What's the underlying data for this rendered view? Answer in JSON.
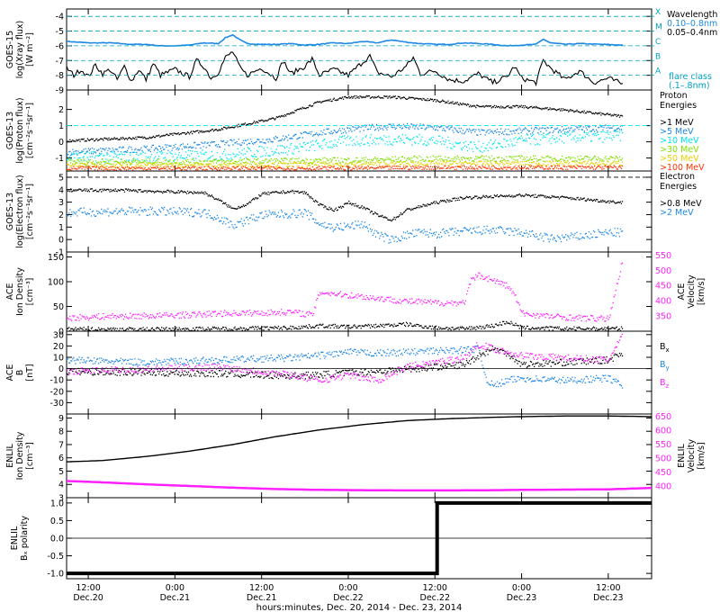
{
  "x_axis": {
    "title": "hours:minutes, Dec. 20, 2014 - Dec. 23, 2014",
    "start_hours": 9,
    "end_hours": 90,
    "ticks": [
      {
        "t": 12,
        "time": "12:00",
        "date": "Dec.20"
      },
      {
        "t": 24,
        "time": "0:00",
        "date": "Dec.21"
      },
      {
        "t": 36,
        "time": "12:00",
        "date": "Dec.21"
      },
      {
        "t": 48,
        "time": "0:00",
        "date": "Dec.22"
      },
      {
        "t": 60,
        "time": "12:00",
        "date": "Dec.22"
      },
      {
        "t": 72,
        "time": "0:00",
        "date": "Dec.23"
      },
      {
        "t": 84,
        "time": "12:00",
        "date": "Dec.23"
      }
    ]
  },
  "colors": {
    "black": "#000000",
    "blue": "#1e88e5",
    "cyan": "#00e5ee",
    "green": "#7fe000",
    "yellow": "#e8d000",
    "orange": "#ff8c00",
    "red": "#ff3300",
    "magenta": "#ff20ff",
    "teal_label": "#00a0c0"
  },
  "chart_data": [
    {
      "id": "xray",
      "type": "line",
      "ylabel_lines": [
        "GOES-15",
        "log(Xray flux)",
        "[W m⁻²]"
      ],
      "ylim": [
        -9,
        -3.5
      ],
      "yticks": [
        -9,
        -8,
        -7,
        -6,
        -5,
        -4
      ],
      "flare_classes": [
        {
          "letter": "A",
          "level": -8
        },
        {
          "letter": "B",
          "level": -7
        },
        {
          "letter": "C",
          "level": -6
        },
        {
          "letter": "M",
          "level": -5
        },
        {
          "letter": "X",
          "level": -4
        }
      ],
      "legend": {
        "title": "Wavelength",
        "entries": [
          {
            "label": "0.10–0.8nm",
            "color": "#1e88e5"
          },
          {
            "label": "0.05–0.4nm",
            "color": "#000000"
          }
        ],
        "note_lines": [
          "flare class",
          "(.1–.8nm)"
        ]
      },
      "series": [
        {
          "name": "0.10–0.8nm",
          "color": "#1e88e5",
          "t": [
            9,
            12,
            15,
            18,
            20,
            22,
            24,
            26,
            28,
            30,
            31,
            32,
            33,
            34,
            36,
            38,
            40,
            42,
            44,
            46,
            48,
            50,
            52,
            54,
            56,
            58,
            60,
            62,
            64,
            66,
            68,
            70,
            72,
            74,
            75,
            76,
            78,
            80,
            83,
            86
          ],
          "values": [
            -5.7,
            -5.8,
            -5.8,
            -5.9,
            -5.9,
            -6.0,
            -6.0,
            -5.95,
            -5.8,
            -5.85,
            -5.45,
            -5.25,
            -5.6,
            -5.85,
            -5.9,
            -5.9,
            -5.85,
            -5.95,
            -5.9,
            -5.8,
            -5.85,
            -5.7,
            -5.8,
            -5.6,
            -5.75,
            -5.85,
            -5.9,
            -5.9,
            -5.8,
            -5.85,
            -5.9,
            -6.0,
            -5.95,
            -5.9,
            -5.55,
            -5.8,
            -5.9,
            -5.85,
            -5.9,
            -5.95
          ]
        },
        {
          "name": "0.05–0.4nm",
          "color": "#000000",
          "t": [
            9,
            10,
            11,
            12,
            13,
            14,
            15,
            16,
            17,
            18,
            19,
            20,
            21,
            22,
            24,
            26,
            27,
            28,
            29,
            30,
            31,
            32,
            33,
            34,
            36,
            38,
            39,
            40,
            42,
            43,
            44,
            46,
            48,
            50,
            51,
            52,
            54,
            56,
            57,
            58,
            60,
            62,
            64,
            66,
            68,
            70,
            71,
            72,
            74,
            75,
            76,
            78,
            80,
            82,
            84,
            86
          ],
          "values": [
            -7.5,
            -8.0,
            -7.6,
            -8.1,
            -7.3,
            -7.9,
            -7.6,
            -8.3,
            -7.4,
            -8.4,
            -7.6,
            -8.3,
            -7.2,
            -8.0,
            -7.6,
            -8.1,
            -7.0,
            -7.4,
            -8.2,
            -7.8,
            -6.8,
            -6.4,
            -7.5,
            -8.0,
            -7.5,
            -8.2,
            -7.0,
            -7.9,
            -7.4,
            -6.9,
            -8.0,
            -7.6,
            -8.0,
            -7.1,
            -6.7,
            -7.8,
            -8.1,
            -7.4,
            -6.8,
            -7.9,
            -7.7,
            -8.3,
            -8.4,
            -7.9,
            -8.5,
            -8.1,
            -7.4,
            -8.2,
            -8.5,
            -7.0,
            -7.5,
            -8.3,
            -7.7,
            -8.5,
            -8.2,
            -8.6
          ]
        }
      ]
    },
    {
      "id": "proton",
      "type": "scatter",
      "ylabel_lines": [
        "GOES-13",
        "log(Proton flux)",
        "[cm⁻²s⁻¹sr⁻¹]"
      ],
      "ylim": [
        -1.8,
        3.2
      ],
      "yticks": [
        -1,
        0,
        1,
        2
      ],
      "threshold": 1,
      "legend": {
        "title_lines": [
          "Proton",
          "Energies"
        ],
        "entries": [
          {
            "label": ">1 MeV",
            "color": "#000000"
          },
          {
            "label": ">5 MeV",
            "color": "#1e88e5"
          },
          {
            "label": ">10 MeV",
            "color": "#00e5ee"
          },
          {
            "label": ">30 MeV",
            "color": "#7fe000"
          },
          {
            "label": ">50 MeV",
            "color": "#e8d000"
          },
          {
            "label": ">100 MeV",
            "color": "#ff3300"
          }
        ]
      },
      "series": [
        {
          "name": ">1 MeV",
          "color": "#000000",
          "t": [
            9,
            20,
            30,
            38,
            44,
            48,
            54,
            60,
            66,
            72,
            78,
            84,
            86
          ],
          "values": [
            0.1,
            0.3,
            0.8,
            1.5,
            2.5,
            2.8,
            2.8,
            2.6,
            2.2,
            2.2,
            2.0,
            1.7,
            1.6
          ]
        },
        {
          "name": ">5 MeV",
          "color": "#1e88e5",
          "t": [
            9,
            20,
            30,
            38,
            44,
            48,
            54,
            60,
            66,
            72,
            78,
            84,
            86
          ],
          "values": [
            -0.6,
            -0.4,
            -0.1,
            0.2,
            0.6,
            0.8,
            1.0,
            0.9,
            0.6,
            0.7,
            0.8,
            0.9,
            0.9
          ]
        },
        {
          "name": ">10 MeV",
          "color": "#00e5ee",
          "t": [
            9,
            20,
            30,
            40,
            48,
            56,
            60,
            66,
            72,
            78,
            86
          ],
          "values": [
            -0.9,
            -0.9,
            -0.8,
            -0.4,
            0.1,
            0.2,
            0.1,
            -0.3,
            0.1,
            0.3,
            0.4
          ]
        },
        {
          "name": ">30 MeV",
          "color": "#7fe000",
          "t": [
            9,
            30,
            48,
            60,
            72,
            86
          ],
          "values": [
            -1.2,
            -1.2,
            -1.1,
            -1.0,
            -1.0,
            -1.0
          ]
        },
        {
          "name": ">50 MeV",
          "color": "#e8d000",
          "t": [
            9,
            30,
            48,
            60,
            72,
            86
          ],
          "values": [
            -1.4,
            -1.4,
            -1.35,
            -1.3,
            -1.3,
            -1.3
          ]
        },
        {
          "name": ">100 MeV",
          "color": "#ff3300",
          "t": [
            9,
            30,
            48,
            60,
            72,
            86
          ],
          "values": [
            -1.6,
            -1.6,
            -1.6,
            -1.55,
            -1.55,
            -1.55
          ]
        }
      ]
    },
    {
      "id": "electron",
      "type": "scatter",
      "ylabel_lines": [
        "GOES-13",
        "log(Electron flux)",
        "[cm⁻²s⁻¹sr⁻¹]"
      ],
      "ylim": [
        -1,
        5.5
      ],
      "yticks": [
        -1,
        0,
        1,
        2,
        3,
        4,
        5
      ],
      "threshold": 5,
      "legend": {
        "title_lines": [
          "Electron",
          "Energies"
        ],
        "entries": [
          {
            "label": ">0.8 MeV",
            "color": "#000000"
          },
          {
            "label": ">2 MeV",
            "color": "#1e88e5"
          }
        ]
      },
      "series": [
        {
          "name": ">0.8 MeV",
          "color": "#000000",
          "t": [
            9,
            16,
            22,
            28,
            30,
            32,
            34,
            36,
            40,
            42,
            44,
            46,
            48,
            50,
            52,
            54,
            56,
            58,
            60,
            64,
            68,
            72,
            78,
            84,
            86
          ],
          "values": [
            4.0,
            4.0,
            3.9,
            3.8,
            3.2,
            2.5,
            2.9,
            3.7,
            3.9,
            3.8,
            2.8,
            2.4,
            3.0,
            2.6,
            2.0,
            1.6,
            2.4,
            2.7,
            3.0,
            3.4,
            3.5,
            3.6,
            3.4,
            3.1,
            3.0
          ]
        },
        {
          "name": ">2 MeV",
          "color": "#1e88e5",
          "t": [
            9,
            16,
            22,
            28,
            30,
            32,
            34,
            36,
            40,
            42,
            44,
            46,
            48,
            50,
            52,
            54,
            56,
            58,
            60,
            64,
            68,
            72,
            76,
            80,
            84,
            86
          ],
          "values": [
            2.2,
            2.3,
            2.3,
            2.2,
            1.8,
            1.2,
            1.6,
            2.0,
            2.1,
            2.2,
            1.3,
            1.0,
            1.1,
            1.3,
            0.4,
            0.0,
            0.4,
            0.6,
            0.5,
            0.7,
            0.8,
            0.6,
            0.1,
            0.3,
            0.6,
            0.6
          ]
        }
      ]
    },
    {
      "id": "ace_density",
      "type": "scatter",
      "ylabel_lines": [
        "ACE",
        "Ion Density",
        "[cm⁻³]"
      ],
      "ylim": [
        0,
        160
      ],
      "yticks": [
        0,
        50,
        100,
        150
      ],
      "right_axis": {
        "label_lines": [
          "ACE",
          "Velocity",
          "[km/s]"
        ],
        "ylim": [
          300,
          560
        ],
        "yticks": [
          350,
          400,
          450,
          500,
          550
        ],
        "color": "#ff20ff"
      },
      "series": [
        {
          "name": "density",
          "color": "#000000",
          "t": [
            9,
            20,
            30,
            40,
            44,
            48,
            52,
            56,
            60,
            64,
            68,
            70,
            72,
            78,
            84,
            86
          ],
          "values": [
            5,
            5,
            6,
            8,
            12,
            10,
            12,
            15,
            8,
            6,
            12,
            20,
            8,
            6,
            6,
            6
          ]
        },
        {
          "name": "velocity",
          "color": "#ff20ff",
          "axis": "right",
          "t": [
            9,
            14,
            20,
            26,
            30,
            36,
            40,
            43,
            44,
            48,
            52,
            56,
            60,
            64,
            65,
            66,
            68,
            70,
            71,
            72,
            76,
            80,
            84,
            86
          ],
          "values": [
            345,
            350,
            352,
            355,
            360,
            362,
            365,
            355,
            430,
            420,
            410,
            400,
            395,
            395,
            470,
            485,
            470,
            450,
            420,
            360,
            350,
            345,
            342,
            540
          ]
        }
      ]
    },
    {
      "id": "ace_bfield",
      "type": "scatter",
      "ylabel_lines": [
        "ACE",
        "B",
        "[nT]"
      ],
      "ylim": [
        -40,
        33
      ],
      "yticks": [
        -30,
        -20,
        -10,
        0,
        10,
        20,
        30
      ],
      "legend": {
        "entries": [
          {
            "label": "Bx",
            "color": "#000000"
          },
          {
            "label": "By",
            "color": "#1e88e5"
          },
          {
            "label": "Bz",
            "color": "#ff20ff"
          }
        ]
      },
      "series": [
        {
          "name": "Bx",
          "color": "#000000",
          "t": [
            9,
            20,
            30,
            40,
            44,
            48,
            52,
            56,
            60,
            64,
            66,
            68,
            70,
            72,
            78,
            84,
            86
          ],
          "values": [
            -2,
            -3,
            -4,
            -6,
            -5,
            -3,
            -2,
            0,
            2,
            4,
            12,
            18,
            14,
            4,
            6,
            8,
            15
          ]
        },
        {
          "name": "By",
          "color": "#1e88e5",
          "t": [
            9,
            20,
            30,
            40,
            44,
            48,
            52,
            56,
            60,
            64,
            66,
            67,
            68,
            70,
            72,
            78,
            84,
            86
          ],
          "values": [
            8,
            6,
            8,
            10,
            12,
            15,
            14,
            15,
            16,
            17,
            18,
            -8,
            -15,
            -10,
            -8,
            -10,
            -8,
            -15
          ]
        },
        {
          "name": "Bz",
          "color": "#ff20ff",
          "t": [
            9,
            20,
            30,
            40,
            44,
            48,
            52,
            56,
            60,
            64,
            66,
            68,
            70,
            72,
            78,
            84,
            86
          ],
          "values": [
            -2,
            0,
            2,
            -5,
            -10,
            -5,
            -10,
            2,
            6,
            10,
            22,
            18,
            15,
            12,
            10,
            8,
            30
          ]
        }
      ]
    },
    {
      "id": "enlil_density",
      "type": "line",
      "ylabel_lines": [
        "ENLIL",
        "Ion Density",
        "[cm⁻³]"
      ],
      "ylim": [
        3,
        9.3
      ],
      "yticks": [
        3,
        4,
        5,
        6,
        7,
        8,
        9
      ],
      "right_axis": {
        "label_lines": [
          "ENLIL",
          "Velocity",
          "[km/s]"
        ],
        "ylim": [
          358,
          658
        ],
        "yticks": [
          400,
          450,
          500,
          550,
          600,
          650
        ],
        "color": "#ff20ff"
      },
      "series": [
        {
          "name": "density",
          "color": "#000000",
          "t": [
            9,
            14,
            20,
            26,
            32,
            38,
            44,
            50,
            56,
            62,
            68,
            72,
            78,
            84,
            90
          ],
          "values": [
            5.7,
            5.8,
            6.1,
            6.5,
            7.0,
            7.6,
            8.1,
            8.5,
            8.8,
            8.95,
            9.05,
            9.1,
            9.15,
            9.15,
            9.1
          ]
        },
        {
          "name": "velocity",
          "color": "#ff20ff",
          "axis": "right",
          "t": [
            9,
            14,
            20,
            26,
            32,
            38,
            44,
            50,
            56,
            62,
            68,
            72,
            78,
            84,
            90
          ],
          "values": [
            418,
            413,
            406,
            400,
            394,
            389,
            386,
            385,
            384,
            384,
            385,
            386,
            387,
            388,
            393
          ]
        }
      ]
    },
    {
      "id": "enlil_polarity",
      "type": "line",
      "ylabel_lines": [
        "ENLIL",
        "Bₓ polarity"
      ],
      "ylim": [
        -1.15,
        1.15
      ],
      "yticks": [
        -1.0,
        -0.5,
        0.0,
        0.5,
        1.0
      ],
      "tick_format": "%.1f",
      "series": [
        {
          "name": "polarity",
          "color": "#000000",
          "t": [
            9,
            60.3,
            60.3,
            90
          ],
          "values": [
            -1,
            -1,
            1,
            1
          ]
        }
      ]
    }
  ]
}
